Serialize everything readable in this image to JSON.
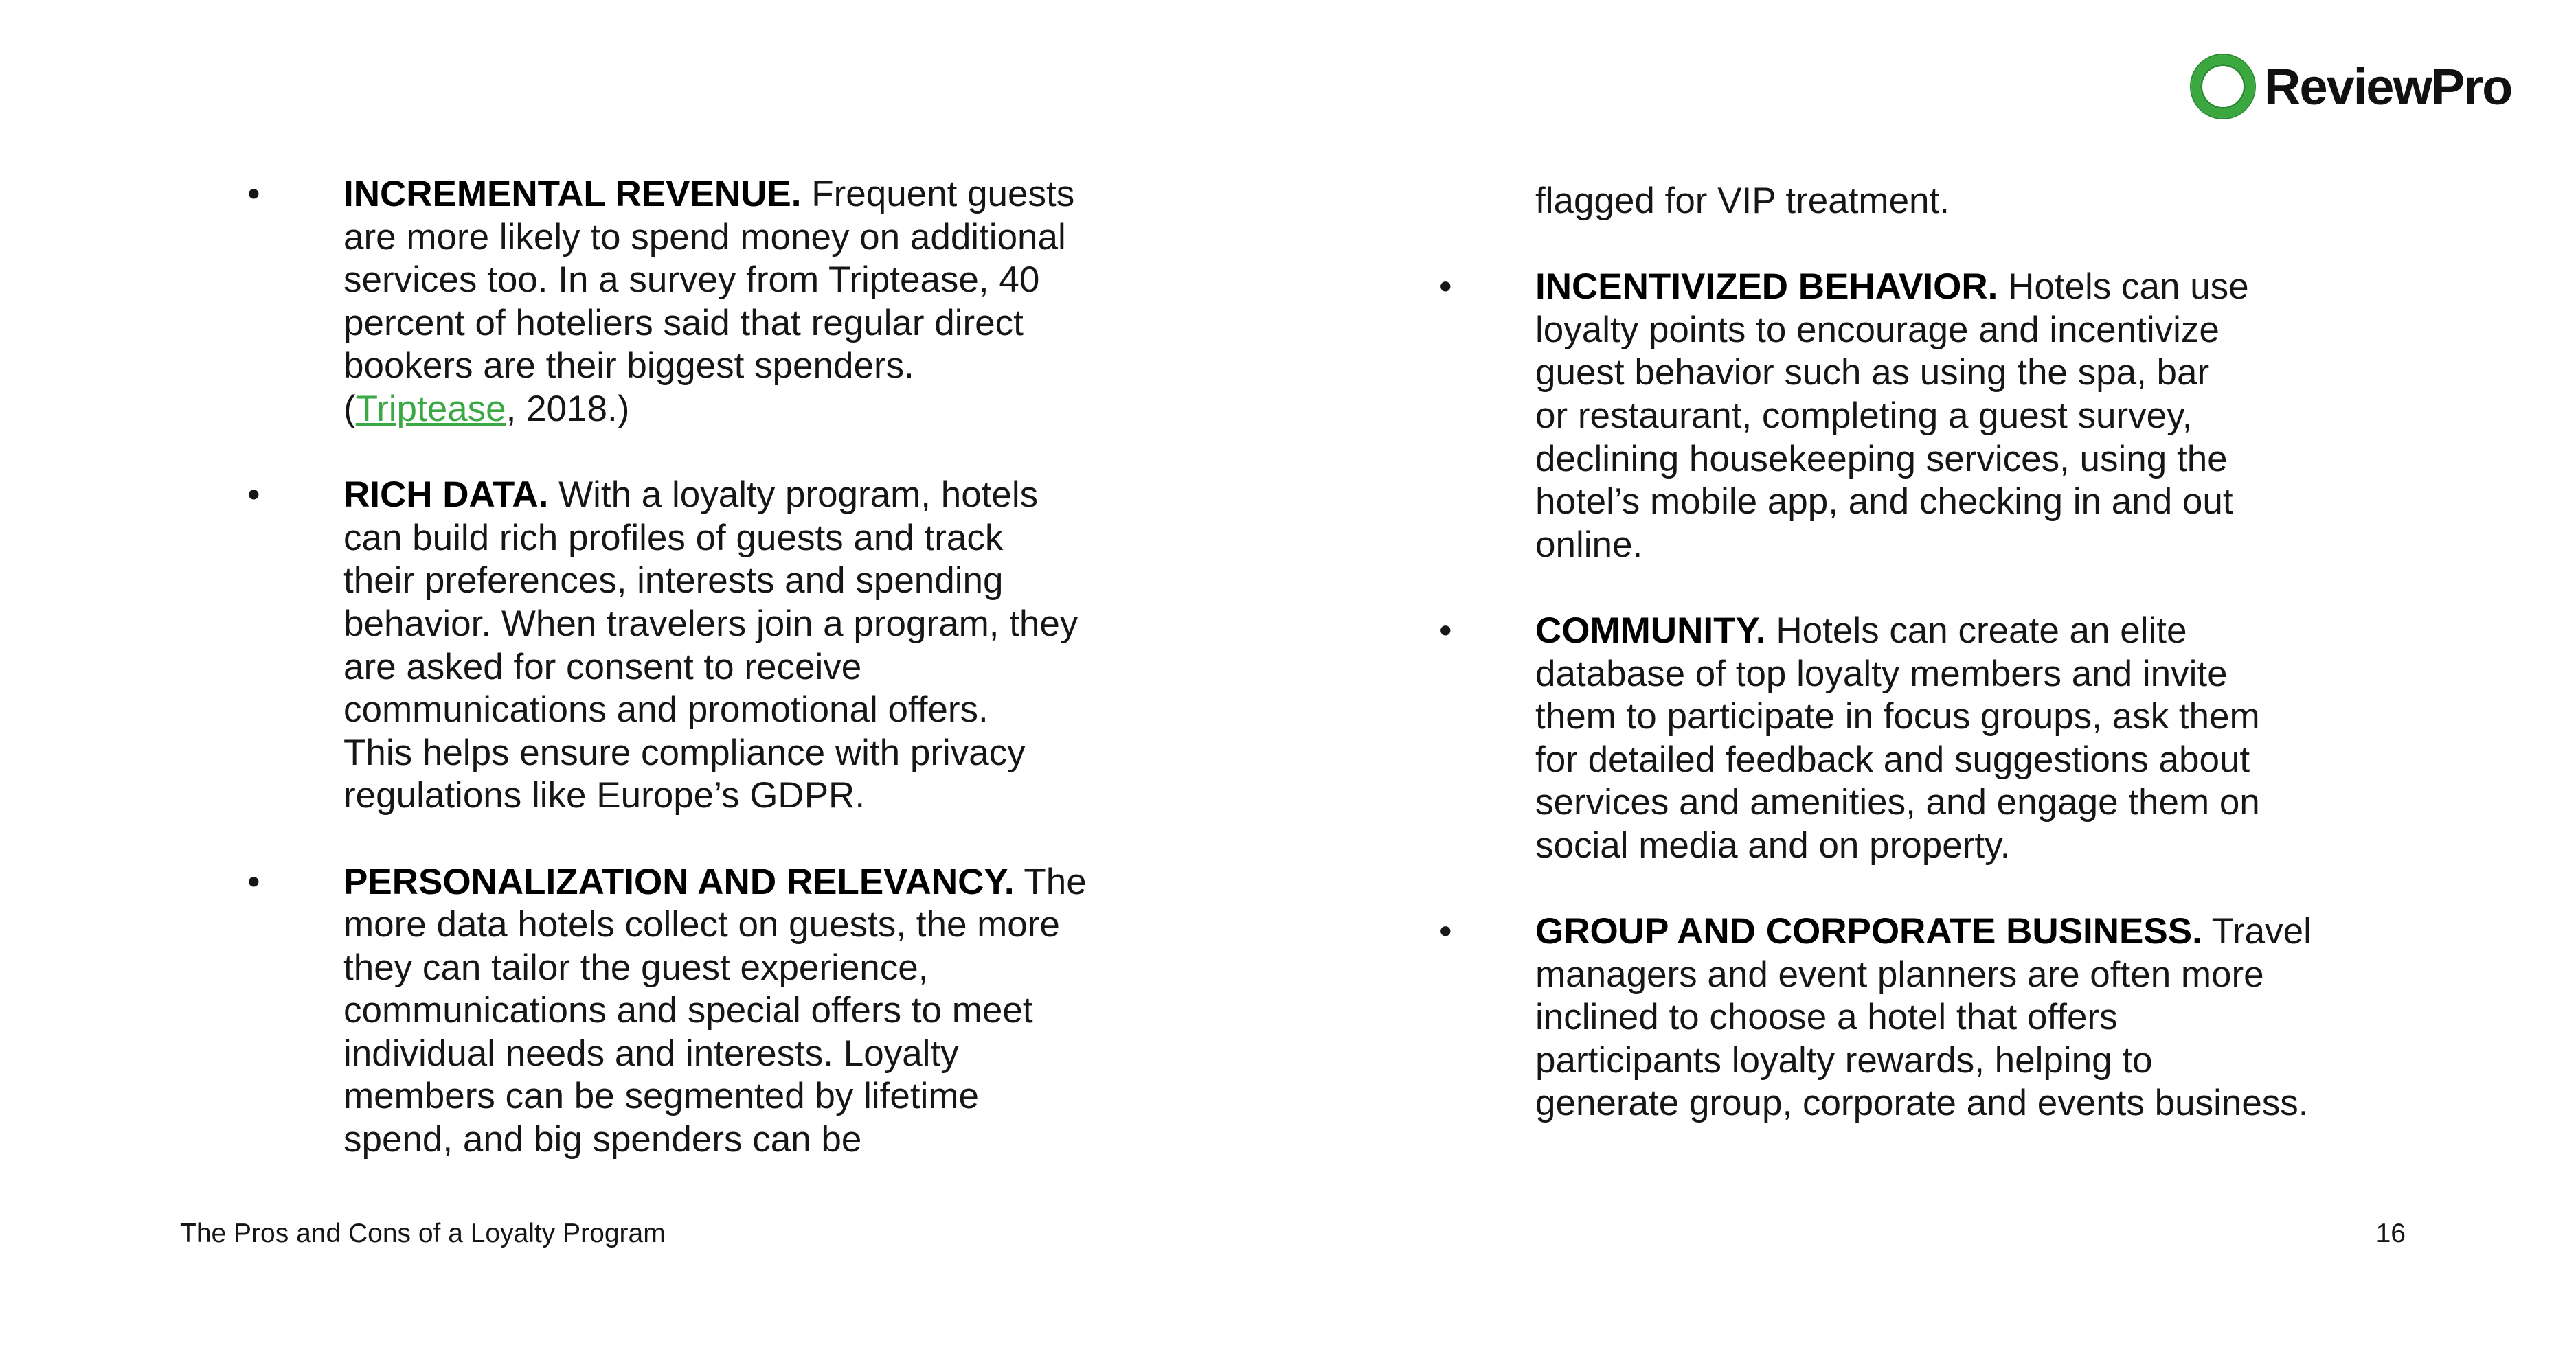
{
  "logo": {
    "text": "ReviewPro",
    "accent_color": "#3aa83f"
  },
  "left_column": [
    {
      "heading": "INCREMENTAL REVENUE.",
      "first_rest": " Frequent guests",
      "lines": [
        "are more likely to spend money on additional",
        "services too. In a survey from Triptease, 40",
        "percent of hoteliers said that regular direct",
        "bookers are their biggest spenders."
      ],
      "citation": {
        "open": "(",
        "link": "Triptease",
        "close": ", 2018.)"
      }
    },
    {
      "heading": "RICH DATA.",
      "first_rest": " With a loyalty program, hotels",
      "lines": [
        "can build rich profiles of guests and track",
        "their preferences, interests and spending",
        "behavior. When travelers join a program, they",
        "are asked for consent to receive",
        "communications and promotional offers.",
        "This helps ensure compliance with privacy",
        "regulations like Europe’s GDPR."
      ]
    },
    {
      "heading": "PERSONALIZATION AND RELEVANCY.",
      "first_rest": " The",
      "lines": [
        "more data hotels collect on guests, the more",
        "they can tailor the guest experience,",
        "communications and special offers to meet",
        "individual needs and interests. Loyalty",
        "members can be segmented by lifetime",
        "spend, and big spenders can be"
      ]
    }
  ],
  "right_column": {
    "continuation": "flagged for VIP treatment.",
    "items": [
      {
        "heading": "INCENTIVIZED BEHAVIOR.",
        "first_rest": " Hotels can use",
        "lines": [
          "loyalty points to encourage and incentivize",
          "guest behavior such as using the spa, bar",
          "or restaurant, completing a guest survey,",
          "declining housekeeping services, using the",
          "hotel’s mobile app, and checking in and out",
          "online."
        ]
      },
      {
        "heading": "COMMUNITY.",
        "first_rest": " Hotels can create an elite",
        "lines": [
          "database of top loyalty members and invite",
          "them to participate in focus groups, ask them",
          "for detailed feedback and suggestions about",
          "services and amenities, and engage them on",
          "social media and on property."
        ]
      },
      {
        "heading": "GROUP AND CORPORATE BUSINESS.",
        "first_rest": " Travel",
        "lines": [
          "managers and event planners are often more",
          "inclined to choose a hotel that offers",
          "participants loyalty rewards, helping to",
          "generate group, corporate and events business."
        ]
      }
    ]
  },
  "bullet_char": "•",
  "footer": {
    "title": "The Pros and Cons of a Loyalty Program",
    "page_number": "16"
  },
  "link_color": "#3aa845"
}
